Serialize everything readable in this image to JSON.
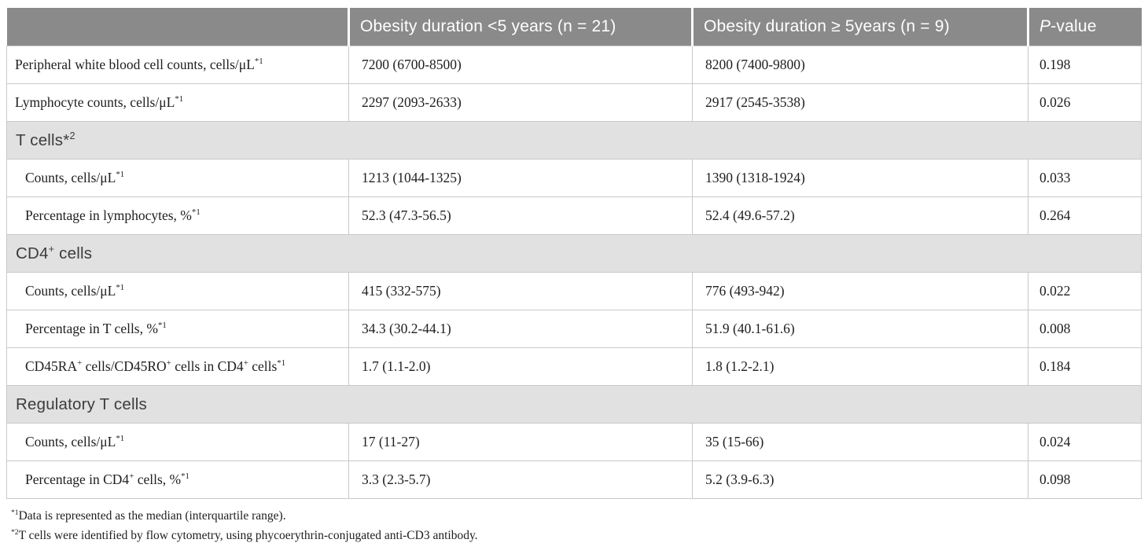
{
  "colors": {
    "header_bg": "#8a8a8a",
    "header_text": "#ffffff",
    "section_bg": "#e1e1e1",
    "section_text": "#3c3c3c",
    "body_text": "#1e1e1e",
    "border": "#c9c9c9"
  },
  "table": {
    "columns": {
      "empty": "",
      "group1": "Obesity duration <5 years (n = 21)",
      "group2": "Obesity duration ≥ 5years (n = 9)",
      "p_italic": "P",
      "p_rest": "-value"
    },
    "rows": [
      {
        "type": "data",
        "indent": false,
        "label": "Peripheral white blood cell counts, cells/μL^{*1}",
        "values": [
          "7200 (6700-8500)",
          "8200 (7400-9800)"
        ],
        "p": "0.198"
      },
      {
        "type": "data",
        "indent": false,
        "label": "Lymphocyte counts, cells/μL^{*1}",
        "values": [
          "2297 (2093-2633)",
          "2917 (2545-3538)"
        ],
        "p": "0.026"
      },
      {
        "type": "section",
        "label": "T cells*^{2}"
      },
      {
        "type": "data",
        "indent": true,
        "label": "Counts, cells/μL^{*1}",
        "values": [
          "1213 (1044-1325)",
          "1390 (1318-1924)"
        ],
        "p": "0.033"
      },
      {
        "type": "data",
        "indent": true,
        "label": "Percentage in lymphocytes, %^{*1}",
        "values": [
          "52.3 (47.3-56.5)",
          "52.4 (49.6-57.2)"
        ],
        "p": "0.264"
      },
      {
        "type": "section",
        "label": "CD4^{+} cells"
      },
      {
        "type": "data",
        "indent": true,
        "label": "Counts, cells/μL^{*1}",
        "values": [
          "415 (332-575)",
          "776 (493-942)"
        ],
        "p": "0.022"
      },
      {
        "type": "data",
        "indent": true,
        "label": "Percentage in T cells, %^{*1}",
        "values": [
          "34.3 (30.2-44.1)",
          "51.9 (40.1-61.6)"
        ],
        "p": "0.008"
      },
      {
        "type": "data",
        "indent": true,
        "label": "CD45RA^{+} cells/CD45RO^{+} cells in CD4^{+} cells^{*1}",
        "values": [
          "1.7 (1.1-2.0)",
          "1.8 (1.2-2.1)"
        ],
        "p": "0.184"
      },
      {
        "type": "section",
        "label": "Regulatory T cells"
      },
      {
        "type": "data",
        "indent": true,
        "label": "Counts, cells/μL^{*1}",
        "values": [
          "17 (11-27)",
          "35 (15-66)"
        ],
        "p": "0.024"
      },
      {
        "type": "data",
        "indent": true,
        "label": "Percentage in CD4^{+} cells, %^{*1}",
        "values": [
          "3.3 (2.3-5.7)",
          "5.2 (3.9-6.3)"
        ],
        "p": "0.098"
      }
    ],
    "footnotes": [
      "^{*1}Data is represented as the median (interquartile range).",
      "^{*2}T cells were identified by flow cytometry, using phycoerythrin-conjugated anti-CD3 antibody."
    ]
  }
}
